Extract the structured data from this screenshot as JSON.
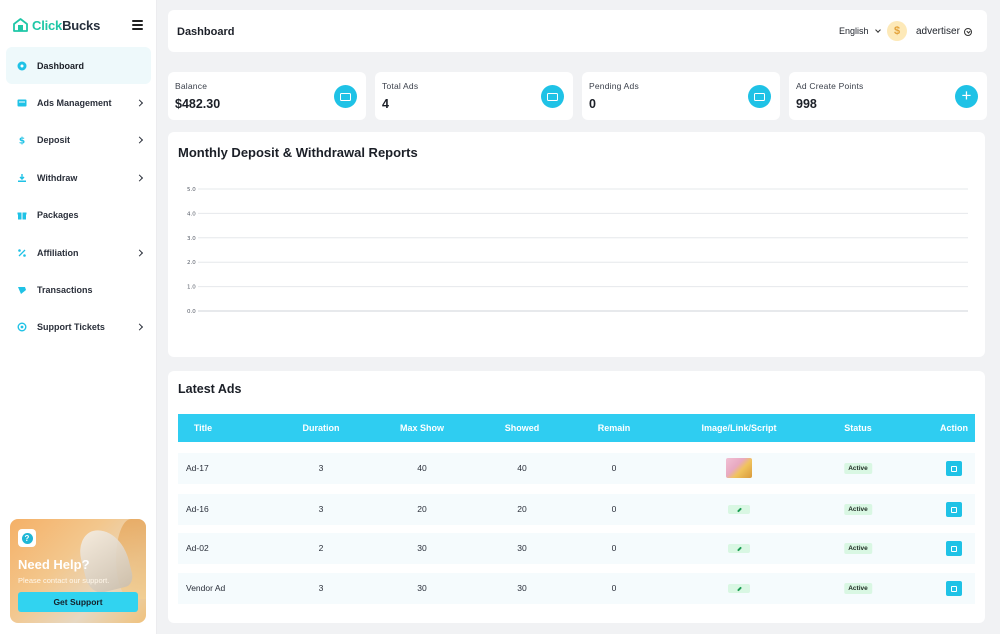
{
  "brand": {
    "part1": "Click",
    "part2": "Bucks"
  },
  "sidebar": {
    "items": [
      {
        "label": "Dashboard",
        "icon": "dashboard-icon",
        "active": true,
        "has_submenu": false
      },
      {
        "label": "Ads Management",
        "icon": "ads-icon",
        "active": false,
        "has_submenu": true
      },
      {
        "label": "Deposit",
        "icon": "dollar-icon",
        "active": false,
        "has_submenu": true
      },
      {
        "label": "Withdraw",
        "icon": "withdraw-icon",
        "active": false,
        "has_submenu": true
      },
      {
        "label": "Packages",
        "icon": "gift-icon",
        "active": false,
        "has_submenu": false
      },
      {
        "label": "Affiliation",
        "icon": "percent-icon",
        "active": false,
        "has_submenu": true
      },
      {
        "label": "Transactions",
        "icon": "transactions-icon",
        "active": false,
        "has_submenu": false
      },
      {
        "label": "Support Tickets",
        "icon": "support-icon",
        "active": false,
        "has_submenu": true
      }
    ],
    "help": {
      "title": "Need Help?",
      "subtitle": "Please contact our support.",
      "button": "Get Support"
    }
  },
  "header": {
    "title": "Dashboard",
    "language": "English",
    "username": "advertiser"
  },
  "stats": [
    {
      "label": "Balance",
      "value": "$482.30",
      "icon": "wallet-icon"
    },
    {
      "label": "Total Ads",
      "value": "4",
      "icon": "image-icon"
    },
    {
      "label": "Pending Ads",
      "value": "0",
      "icon": "image-icon"
    },
    {
      "label": "Ad Create Points",
      "value": "998",
      "icon": "plus-icon"
    }
  ],
  "chart_data": {
    "type": "line",
    "title": "Monthly Deposit & Withdrawal Reports",
    "xlabel": "",
    "ylabel": "",
    "ylim": [
      0,
      5
    ],
    "y_ticks": [
      "0.0",
      "1.0",
      "2.0",
      "3.0",
      "4.0",
      "5.0"
    ],
    "grid": true,
    "categories": [],
    "series": []
  },
  "latest_ads": {
    "title": "Latest Ads",
    "columns": [
      "Title",
      "Duration",
      "Max Show",
      "Showed",
      "Remain",
      "Image/Link/Script",
      "Status",
      "Action"
    ],
    "rows": [
      {
        "title": "Ad-17",
        "duration": "3",
        "max_show": "40",
        "showed": "40",
        "remain": "0",
        "media": "image",
        "status": "Active"
      },
      {
        "title": "Ad-16",
        "duration": "3",
        "max_show": "20",
        "showed": "20",
        "remain": "0",
        "media": "link",
        "status": "Active"
      },
      {
        "title": "Ad-02",
        "duration": "2",
        "max_show": "30",
        "showed": "30",
        "remain": "0",
        "media": "link",
        "status": "Active"
      },
      {
        "title": "Vendor Ad",
        "duration": "3",
        "max_show": "30",
        "showed": "30",
        "remain": "0",
        "media": "link",
        "status": "Active"
      }
    ]
  },
  "colors": {
    "accent": "#2fcdf1",
    "brand_green": "#1fc7a7",
    "status_bg": "#d9f7e3"
  }
}
